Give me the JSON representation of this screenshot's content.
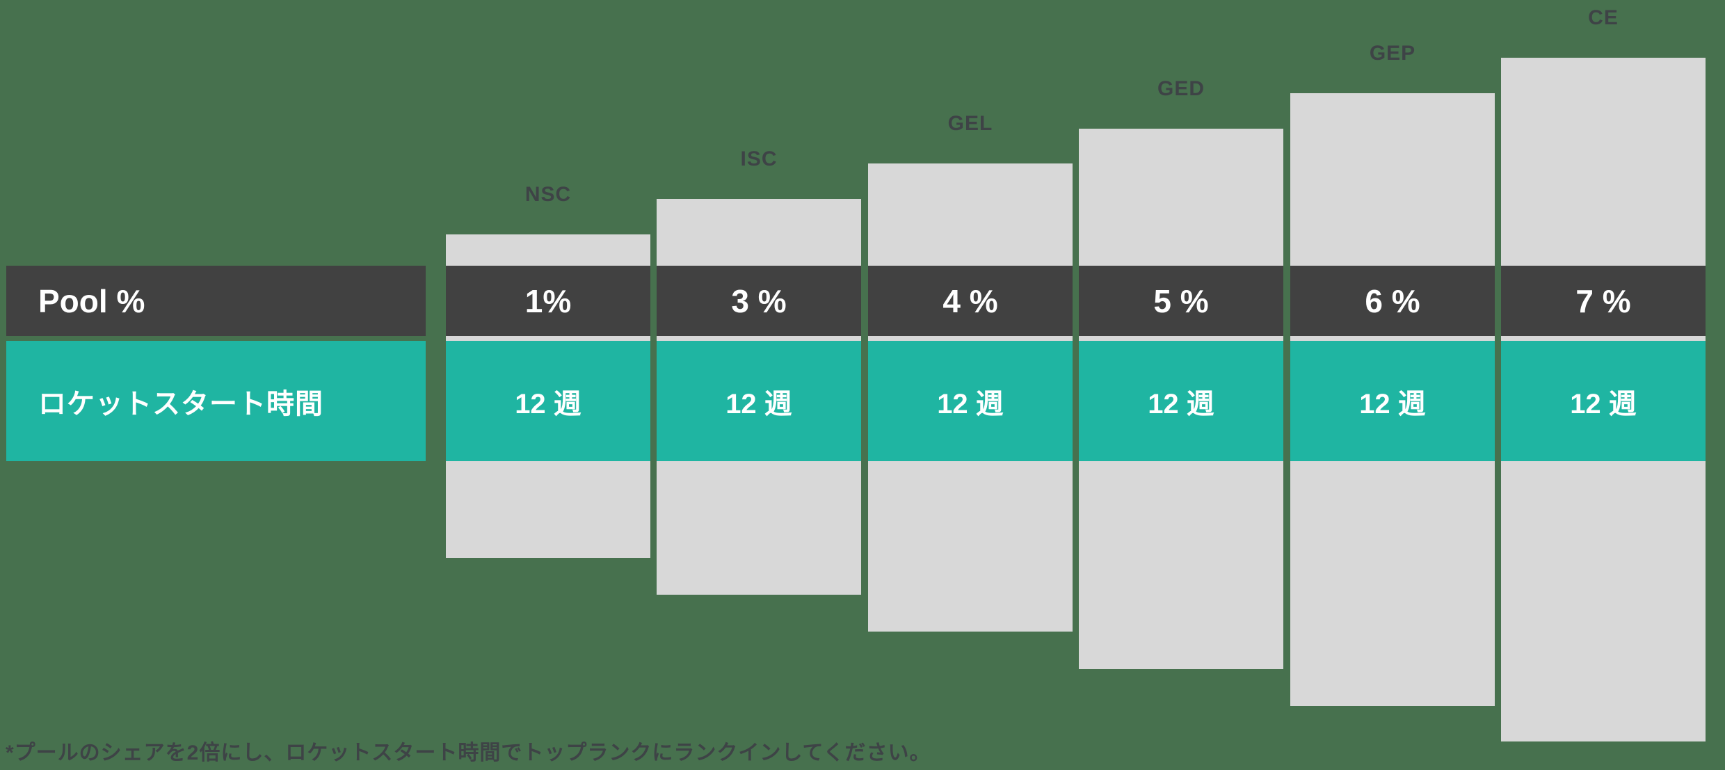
{
  "colors": {
    "background_green": "#47714e",
    "column_gray": "#d8d8d8",
    "pool_row_dark": "#414141",
    "rocket_row_teal": "#1fb5a2",
    "label_text_dark": "#3e4346",
    "cell_text_white": "#ffffff"
  },
  "table": {
    "row_headers": [
      {
        "id": "pool",
        "label": "Pool %"
      },
      {
        "id": "rocket",
        "label": "ロケットスタート時間"
      }
    ],
    "columns": [
      {
        "label": "NSC",
        "pool": "1%",
        "rocket": "12 週"
      },
      {
        "label": "ISC",
        "pool": "3 %",
        "rocket": "12 週"
      },
      {
        "label": "GEL",
        "pool": "4 %",
        "rocket": "12 週"
      },
      {
        "label": "GED",
        "pool": "5 %",
        "rocket": "12 週"
      },
      {
        "label": "GEP",
        "pool": "6 %",
        "rocket": "12 週"
      },
      {
        "label": "CE",
        "pool": "7 %",
        "rocket": "12 週"
      }
    ],
    "footnote": "*プールのシェアを2倍にし、ロケットスタート時間でトップランクにランクインしてください。"
  },
  "chart_data": {
    "type": "bar",
    "categories": [
      "NSC",
      "ISC",
      "GEL",
      "GED",
      "GEP",
      "CE"
    ],
    "series": [
      {
        "name": "Pool %",
        "values": [
          1,
          3,
          4,
          5,
          6,
          7
        ],
        "display": [
          "1%",
          "3 %",
          "4 %",
          "5 %",
          "6 %",
          "7 %"
        ]
      },
      {
        "name": "ロケットスタート時間 (週)",
        "values": [
          12,
          12,
          12,
          12,
          12,
          12
        ],
        "display": [
          "12 週",
          "12 週",
          "12 週",
          "12 週",
          "12 週",
          "12 週"
        ]
      }
    ],
    "title": "",
    "xlabel": "",
    "ylabel": "",
    "legend_position": "left-row-headers",
    "grid": false,
    "annotations": [
      "*プールのシェアを2倍にし、ロケットスタート時間でトップランクにランクインしてください。"
    ],
    "layout_note": "stepped ascending gray columns left-to-right; dark band = Pool %, teal band = rocket-start weeks"
  }
}
